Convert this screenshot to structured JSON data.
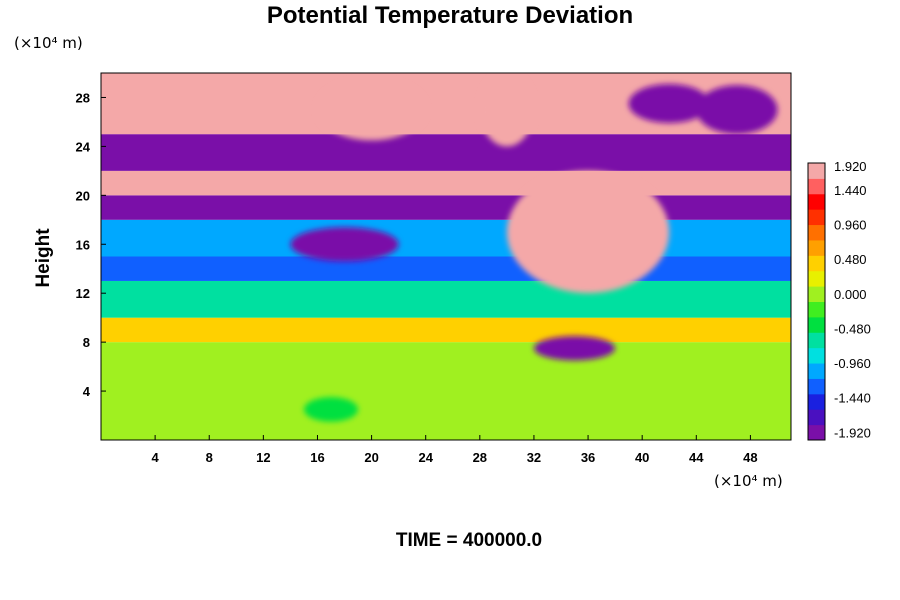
{
  "chart_data": {
    "type": "heatmap",
    "title": "Potential Temperature Deviation",
    "ylabel": "Height",
    "x_unit": "(×10⁴ m)",
    "y_unit": "(×10⁴ m)",
    "xlim": [
      0,
      51
    ],
    "ylim": [
      0,
      30
    ],
    "x_ticks": [
      "4",
      "8",
      "12",
      "16",
      "20",
      "24",
      "28",
      "32",
      "36",
      "40",
      "44",
      "48"
    ],
    "y_ticks": [
      "4",
      "8",
      "12",
      "16",
      "20",
      "24",
      "28"
    ],
    "colorbar": {
      "min": -1.92,
      "max": 1.92,
      "tick_labels": [
        "1.920",
        "1.440",
        "0.960",
        "0.480",
        "0.000",
        "-0.480",
        "-0.960",
        "-1.440",
        "-1.920"
      ],
      "colors": [
        "#7a0fa8",
        "#4a10c0",
        "#1a20e0",
        "#1060ff",
        "#00a8ff",
        "#00e0e0",
        "#00e0a0",
        "#00e040",
        "#40ee20",
        "#a0f020",
        "#e8f000",
        "#ffd000",
        "#ffa000",
        "#ff7000",
        "#ff3000",
        "#ff0000",
        "#ff6060",
        "#f4a8a8"
      ]
    },
    "regions": [
      {
        "y0": 0,
        "y1": 8,
        "value": 0.05
      },
      {
        "y0": 8,
        "y1": 10,
        "value": 0.6
      },
      {
        "y0": 10,
        "y1": 13,
        "value": -0.6
      },
      {
        "y0": 13,
        "y1": 15,
        "value": -1.3
      },
      {
        "y0": 15,
        "y1": 18,
        "value": -1.0
      },
      {
        "y0": 18,
        "y1": 20,
        "value": -1.92
      },
      {
        "y0": 20,
        "y1": 22,
        "value": 1.92
      },
      {
        "y0": 22,
        "y1": 25,
        "value": -1.92
      },
      {
        "y0": 25,
        "y1": 30,
        "value": 1.92
      }
    ],
    "blobs": [
      {
        "x": 36,
        "y": 17,
        "rx": 6,
        "ry": 5,
        "value": 1.92
      },
      {
        "x": 35,
        "y": 7.5,
        "rx": 3,
        "ry": 1,
        "value": -1.92
      },
      {
        "x": 18,
        "y": 16,
        "rx": 4,
        "ry": 1.4,
        "value": -1.92
      },
      {
        "x": 30,
        "y": 27,
        "rx": 2,
        "ry": 3,
        "value": 1.92
      },
      {
        "x": 20,
        "y": 27,
        "rx": 4,
        "ry": 2.5,
        "value": 1.92
      },
      {
        "x": 42,
        "y": 27.5,
        "rx": 3,
        "ry": 1.6,
        "value": -1.92
      },
      {
        "x": 47,
        "y": 27,
        "rx": 3,
        "ry": 2,
        "value": -1.92
      },
      {
        "x": 17,
        "y": 2.5,
        "rx": 2,
        "ry": 1,
        "value": -0.4
      }
    ]
  },
  "time_label": "TIME = 400000.0"
}
